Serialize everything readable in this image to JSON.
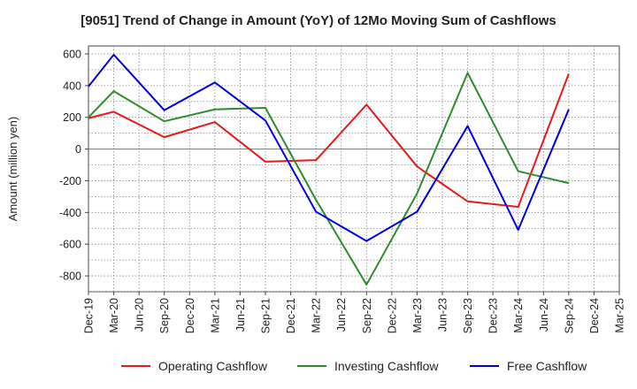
{
  "chart_data": {
    "type": "line",
    "title": "[9051]  Trend of Change in Amount (YoY) of 12Mo Moving Sum of Cashflows",
    "xlabel": "",
    "ylabel": "Amount (million yen)",
    "ylim": [
      -900,
      650
    ],
    "yticks": [
      600,
      400,
      200,
      0,
      -200,
      -400,
      -600,
      -800
    ],
    "ytick_labels": [
      "600",
      "400",
      "200",
      "0",
      "-200",
      "-400",
      "-600",
      "-800"
    ],
    "categories": [
      "Dec-19",
      "Mar-20",
      "Jun-20",
      "Sep-20",
      "Dec-20",
      "Mar-21",
      "Jun-21",
      "Sep-21",
      "Dec-21",
      "Mar-22",
      "Jun-22",
      "Sep-22",
      "Dec-22",
      "Mar-23",
      "Jun-23",
      "Sep-23",
      "Dec-23",
      "Mar-24",
      "Jun-24",
      "Sep-24",
      "Dec-24",
      "Mar-25"
    ],
    "grid": true,
    "legend_position": "bottom",
    "series": [
      {
        "name": "Operating Cashflow",
        "color": "#e41a1c",
        "values": [
          195,
          235,
          null,
          75,
          null,
          170,
          null,
          -80,
          null,
          -70,
          null,
          280,
          null,
          -110,
          null,
          -330,
          null,
          -365,
          null,
          475,
          null,
          null
        ]
      },
      {
        "name": "Investing Cashflow",
        "color": "#2e8b2e",
        "values": [
          200,
          365,
          null,
          175,
          null,
          250,
          null,
          260,
          null,
          -320,
          null,
          -855,
          null,
          -280,
          null,
          480,
          null,
          -140,
          null,
          -215,
          null,
          null
        ]
      },
      {
        "name": "Free Cashflow",
        "color": "#0000dd",
        "values": [
          395,
          595,
          null,
          245,
          null,
          420,
          null,
          180,
          null,
          -395,
          null,
          -580,
          null,
          -395,
          null,
          145,
          null,
          -510,
          null,
          250,
          null,
          null
        ]
      }
    ]
  }
}
